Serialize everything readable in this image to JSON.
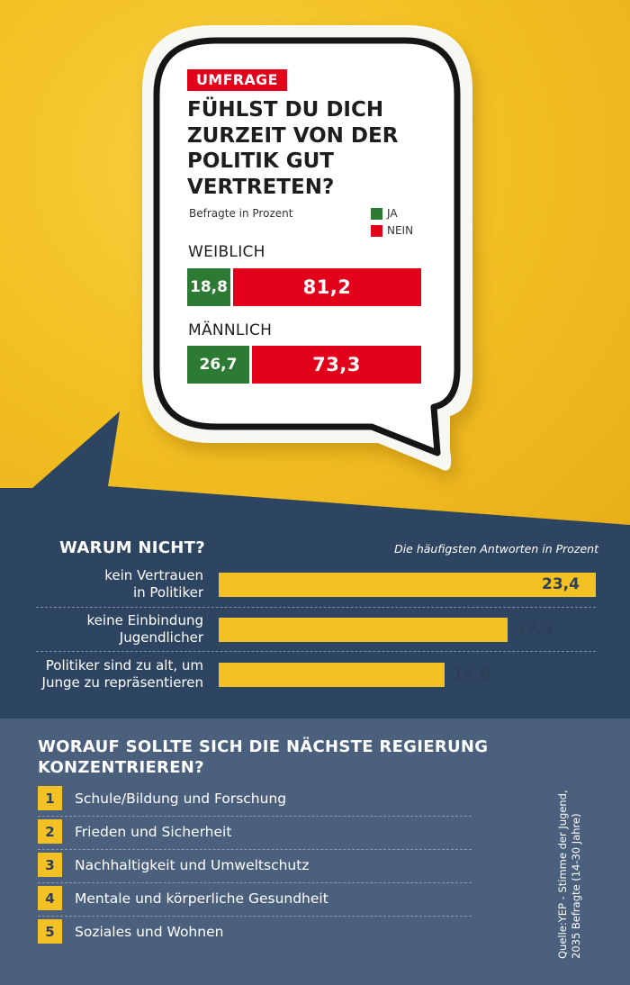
{
  "survey": {
    "badge": "UMFRAGE",
    "question": "FÜHLST DU DICH ZURZEIT VON DER POLITIK GUT VERTRETEN?",
    "respondents_note": "Befragte in Prozent",
    "legend": {
      "yes": "JA",
      "no": "NEIN"
    }
  },
  "colors": {
    "yes": "#2c7a33",
    "no": "#e2001a",
    "accent": "#f3c123",
    "navy": "#2e3f57",
    "slate": "#495f7b"
  },
  "chart_data": [
    {
      "type": "bar",
      "stacked": true,
      "orientation": "horizontal",
      "title": "FÜHLST DU DICH ZURZEIT VON DER POLITIK GUT VERTRETEN?",
      "categories": [
        "WEIBLICH",
        "MÄNNLICH"
      ],
      "series": [
        {
          "name": "JA",
          "values": [
            18.8,
            26.7
          ],
          "labels": [
            "18,8",
            "26,7"
          ]
        },
        {
          "name": "NEIN",
          "values": [
            81.2,
            73.3
          ],
          "labels": [
            "81,2",
            "73,3"
          ]
        }
      ],
      "ylabel": "Befragte in Prozent",
      "xlim": [
        0,
        100
      ]
    },
    {
      "type": "bar",
      "orientation": "horizontal",
      "title": "WARUM NICHT?",
      "subtitle": "Die häufigsten Antworten in Prozent",
      "categories": [
        "kein Vertrauen in Politiker",
        "keine Einbindung Jugendlicher",
        "Politiker sind zu alt, um Junge zu repräsentieren"
      ],
      "values": [
        23.4,
        17.9,
        14.0
      ],
      "labels": [
        "23,4",
        "17,9",
        "14,0"
      ],
      "xlim": [
        0,
        23.4
      ]
    }
  ],
  "reasons_display": [
    {
      "line1": "kein Vertrauen",
      "line2": "in Politiker"
    },
    {
      "line1": "keine Einbindung",
      "line2": "Jugendlicher"
    },
    {
      "line1": "Politiker sind zu alt, um",
      "line2": "Junge zu repräsentieren"
    }
  ],
  "priorities": {
    "title": "WORAUF SOLLTE SICH DIE NÄCHSTE REGIERUNG KONZENTRIEREN?",
    "items": [
      {
        "rank": "1",
        "text": "Schule/Bildung und Forschung"
      },
      {
        "rank": "2",
        "text": "Frieden und Sicherheit"
      },
      {
        "rank": "3",
        "text": "Nachhaltigkeit und Umweltschutz"
      },
      {
        "rank": "4",
        "text": "Mentale und körperliche Gesundheit"
      },
      {
        "rank": "5",
        "text": "Soziales und Wohnen"
      }
    ]
  },
  "source": "Quelle:YEP - Stimme der Jugend, 2035 Befragte (14-30 Jahre)"
}
